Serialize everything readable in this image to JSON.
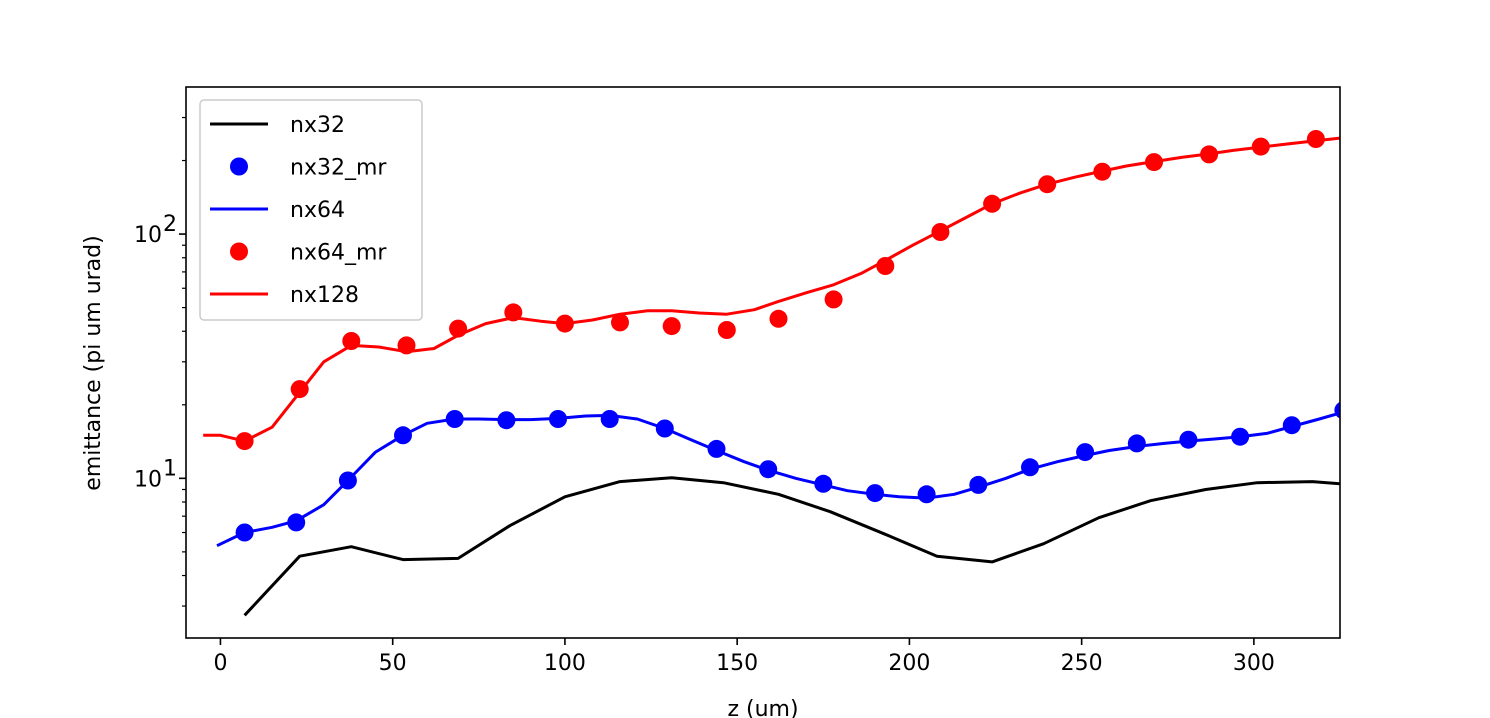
{
  "chart_data": {
    "type": "line",
    "title": "",
    "xlabel": "z (um)",
    "ylabel": "emittance (pi um urad)",
    "xlim": [
      -10,
      325
    ],
    "ylim": [
      2.22,
      400
    ],
    "yscale": "log",
    "grid": false,
    "legend_position": "top-left",
    "x_ticks": [
      0,
      50,
      100,
      150,
      200,
      250,
      300
    ],
    "x_tick_labels": [
      "0",
      "50",
      "100",
      "150",
      "200",
      "250",
      "300"
    ],
    "y_major_ticks": [
      10,
      100
    ],
    "y_major_base": "10",
    "y_major_exponents": [
      "1",
      "2"
    ],
    "y_minor_ticks": [
      3,
      4,
      5,
      6,
      7,
      8,
      9,
      20,
      30,
      40,
      50,
      60,
      70,
      80,
      90,
      200,
      300
    ],
    "series": [
      {
        "name": "nx32",
        "style": "line",
        "color": "#000000",
        "x": [
          7,
          23,
          38,
          53,
          69,
          84,
          100,
          116,
          131,
          146,
          162,
          177,
          193,
          208,
          224,
          239,
          255,
          270,
          286,
          301,
          317,
          325
        ],
        "y": [
          2.75,
          4.8,
          5.25,
          4.65,
          4.7,
          6.4,
          8.4,
          9.7,
          10.05,
          9.6,
          8.6,
          7.3,
          5.9,
          4.8,
          4.55,
          5.4,
          6.9,
          8.1,
          9.0,
          9.6,
          9.7,
          9.5
        ]
      },
      {
        "name": "nx32_mr",
        "style": "markers",
        "color": "#0000ff",
        "x": [
          7,
          22,
          37,
          53,
          68,
          83,
          98,
          113,
          129,
          144,
          159,
          175,
          190,
          205,
          220,
          235,
          251,
          266,
          281,
          296,
          311,
          326
        ],
        "y": [
          6.0,
          6.6,
          9.8,
          15.0,
          17.5,
          17.3,
          17.5,
          17.5,
          16.0,
          13.2,
          10.9,
          9.5,
          8.7,
          8.6,
          9.4,
          11.1,
          12.8,
          13.9,
          14.4,
          14.8,
          16.5,
          19.0
        ]
      },
      {
        "name": "nx64",
        "style": "line",
        "color": "#0000ff",
        "x": [
          -1,
          7,
          15,
          22,
          30,
          37,
          45,
          53,
          60,
          68,
          75,
          83,
          90,
          98,
          106,
          113,
          121,
          129,
          136,
          144,
          152,
          159,
          167,
          175,
          182,
          190,
          197,
          205,
          213,
          220,
          228,
          235,
          243,
          251,
          258,
          266,
          274,
          281,
          289,
          296,
          304,
          311,
          319,
          325
        ],
        "y": [
          5.3,
          6.0,
          6.3,
          6.7,
          7.8,
          9.8,
          12.8,
          15.0,
          16.8,
          17.5,
          17.5,
          17.4,
          17.4,
          17.6,
          18.0,
          18.1,
          17.5,
          16.0,
          14.5,
          13.0,
          11.7,
          10.8,
          10.0,
          9.4,
          8.9,
          8.6,
          8.4,
          8.3,
          8.6,
          9.2,
          10.0,
          10.9,
          11.7,
          12.4,
          13.0,
          13.5,
          13.9,
          14.2,
          14.5,
          14.8,
          15.3,
          16.3,
          17.5,
          18.5
        ]
      },
      {
        "name": "nx64_mr",
        "style": "markers",
        "color": "#ff0000",
        "x": [
          7,
          23,
          38,
          54,
          69,
          85,
          100,
          116,
          131,
          147,
          162,
          178,
          193,
          209,
          224,
          240,
          256,
          271,
          287,
          302,
          318
        ],
        "y": [
          14.2,
          23.2,
          36.5,
          35.0,
          41.0,
          47.8,
          43.0,
          43.5,
          42.0,
          40.5,
          45.0,
          54.0,
          74.0,
          102.0,
          133.0,
          160.0,
          180.0,
          197.0,
          212.0,
          228.0,
          245.0
        ]
      },
      {
        "name": "nx128",
        "style": "line",
        "color": "#ff0000",
        "x": [
          -5,
          0,
          7,
          15,
          23,
          30,
          38,
          46,
          54,
          62,
          69,
          77,
          85,
          93,
          100,
          108,
          116,
          124,
          131,
          139,
          147,
          155,
          162,
          170,
          178,
          186,
          193,
          201,
          209,
          217,
          224,
          232,
          240,
          248,
          256,
          263,
          271,
          279,
          287,
          294,
          302,
          310,
          318,
          325
        ],
        "y": [
          15.0,
          15.0,
          14.2,
          16.2,
          22.5,
          30.0,
          35.0,
          34.5,
          33.0,
          34.0,
          38.5,
          43.0,
          45.5,
          44.0,
          43.0,
          44.5,
          47.0,
          48.5,
          48.5,
          47.5,
          47.0,
          49.0,
          53.0,
          57.5,
          62.0,
          69.0,
          78.0,
          90.0,
          103.0,
          118.0,
          133.0,
          147.0,
          160.0,
          171.0,
          181.0,
          190.0,
          198.0,
          206.0,
          213.0,
          220.0,
          227.0,
          234.0,
          241.0,
          247.0
        ]
      }
    ]
  }
}
